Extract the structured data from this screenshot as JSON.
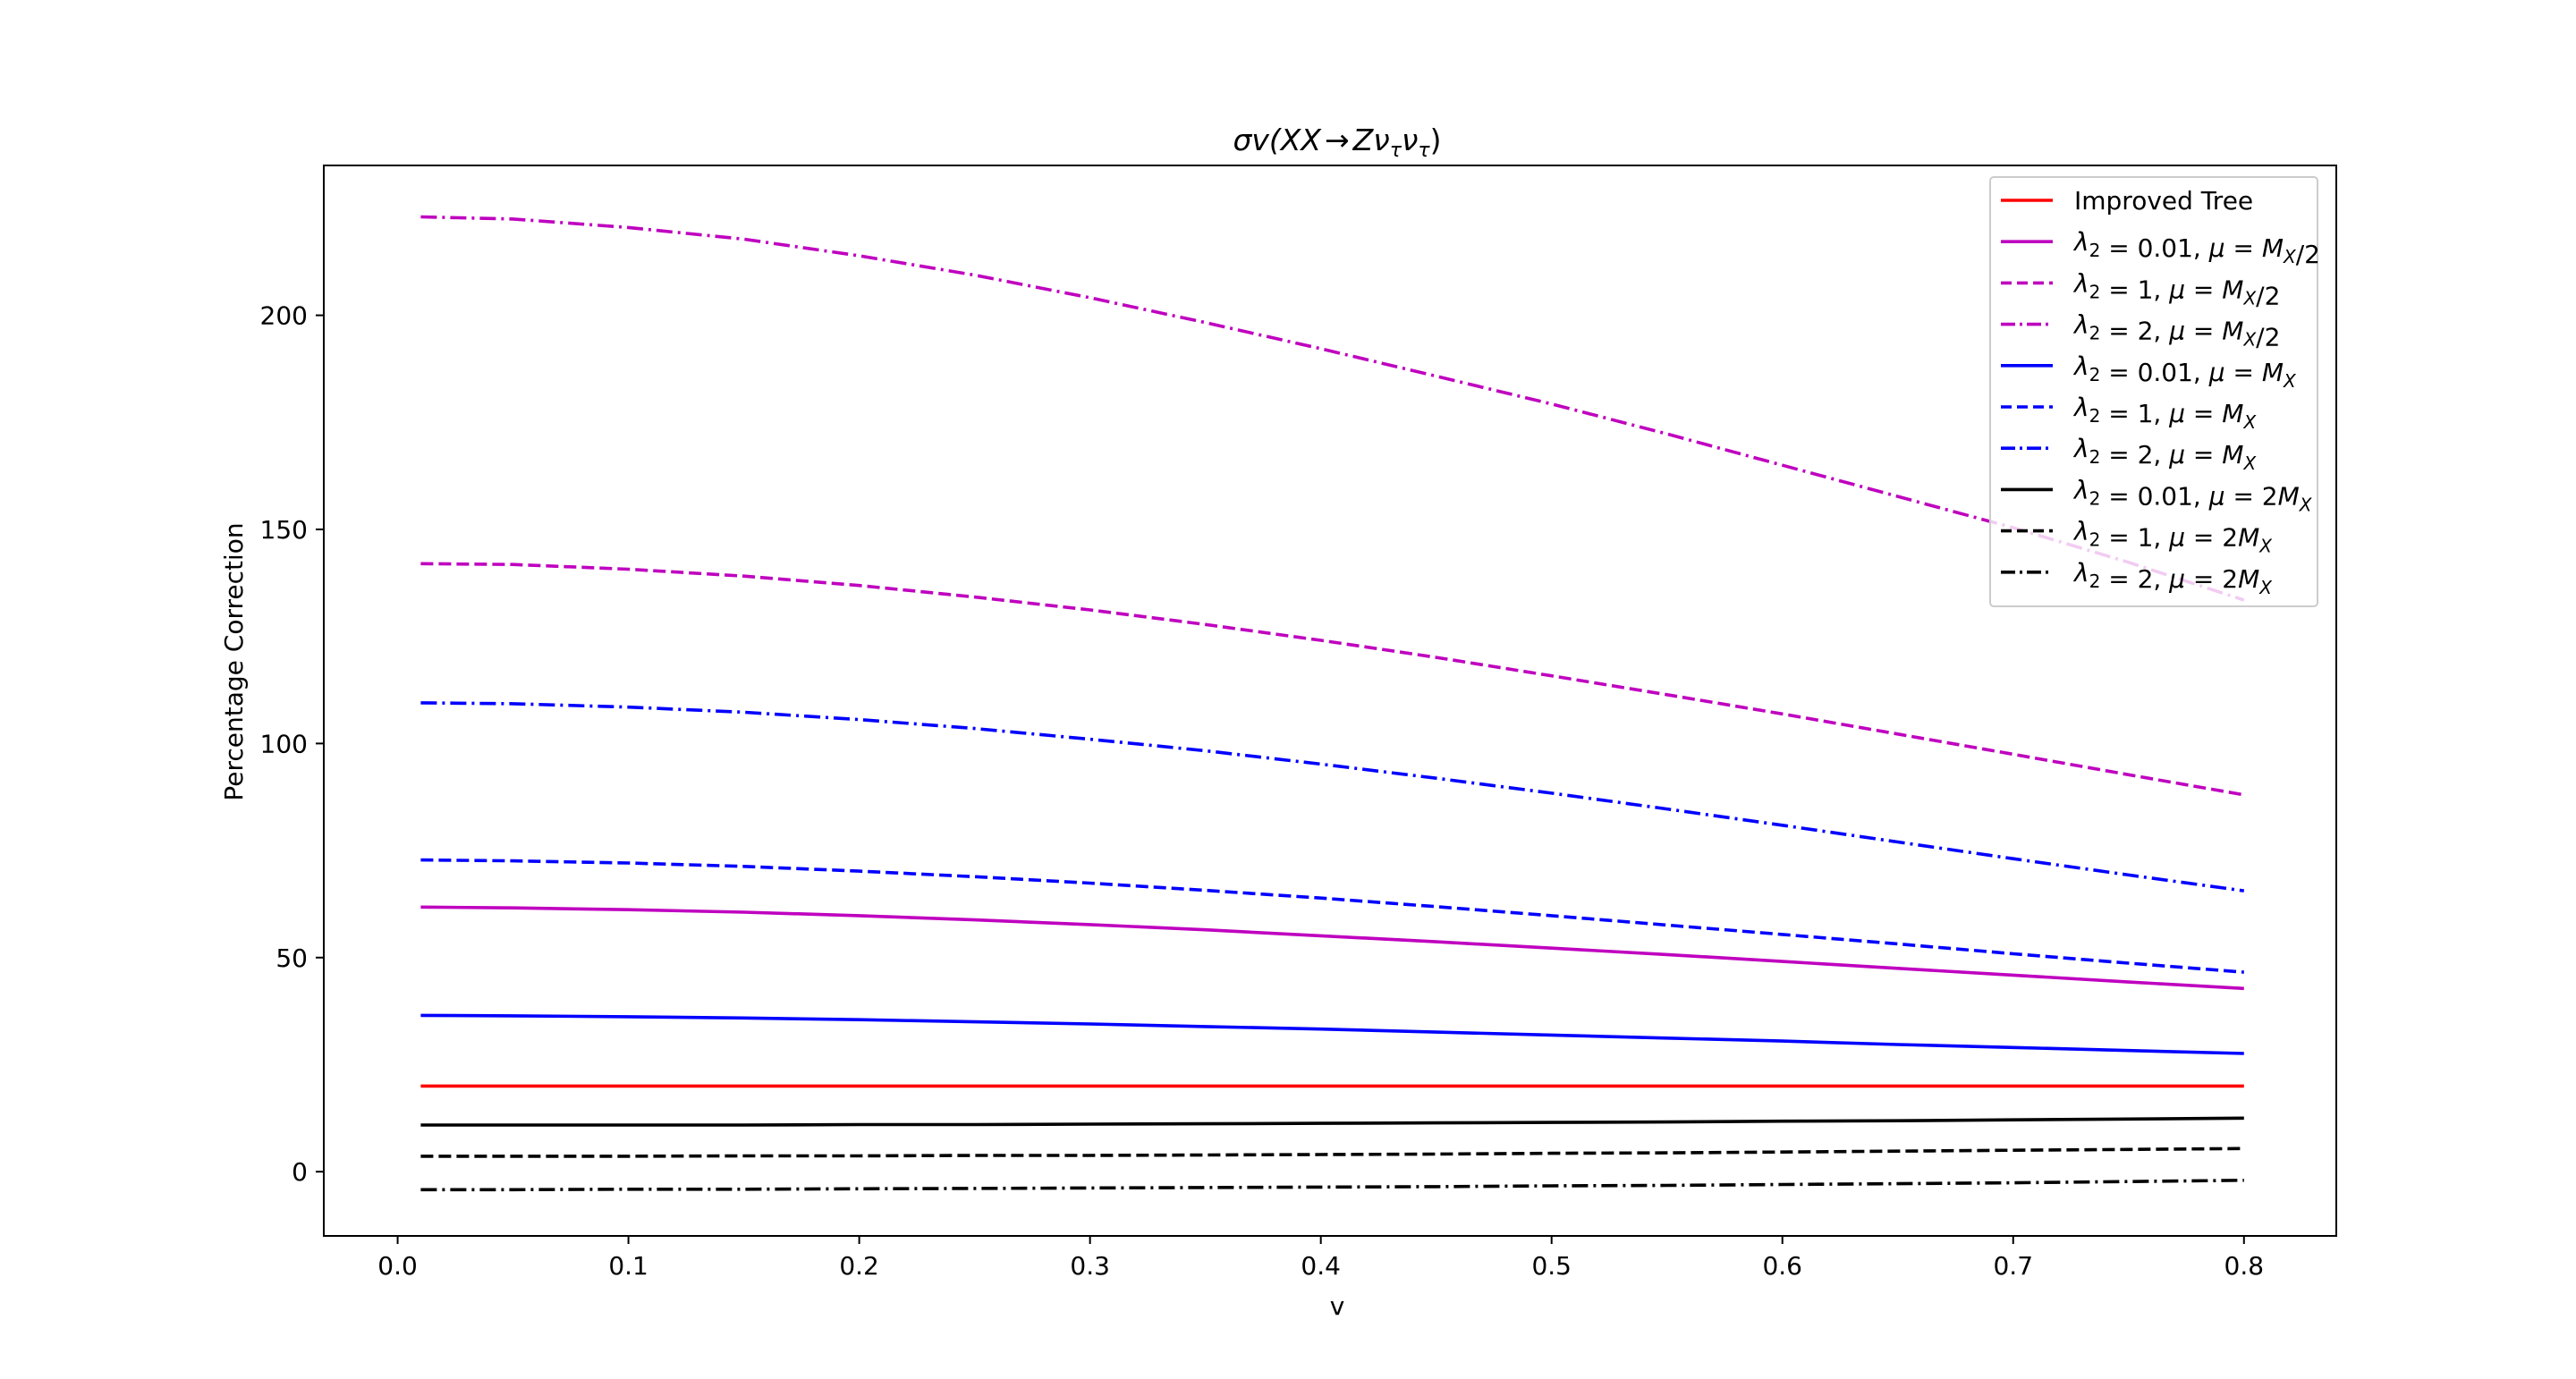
{
  "chart_data": {
    "type": "line",
    "title": "σv(XX → Zν_τν_τ)",
    "xlabel": "v",
    "ylabel": "Percentage Correction",
    "xlim": [
      -0.032,
      0.84
    ],
    "ylim": [
      -15,
      235
    ],
    "x_ticks": [
      0.0,
      0.1,
      0.2,
      0.3,
      0.4,
      0.5,
      0.6,
      0.7,
      0.8
    ],
    "x_tick_labels": [
      "0.0",
      "0.1",
      "0.2",
      "0.3",
      "0.4",
      "0.5",
      "0.6",
      "0.7",
      "0.8"
    ],
    "y_ticks": [
      0,
      50,
      100,
      150,
      200
    ],
    "y_tick_labels": [
      "0",
      "50",
      "100",
      "150",
      "200"
    ],
    "grid": false,
    "legend_position": "top-right",
    "x": [
      0.01,
      0.05,
      0.1,
      0.15,
      0.2,
      0.25,
      0.3,
      0.35,
      0.4,
      0.45,
      0.5,
      0.55,
      0.6,
      0.65,
      0.7,
      0.75,
      0.8
    ],
    "series": [
      {
        "name": "Improved Tree",
        "legend_parts": [
          {
            "t": "Improved Tree",
            "i": false
          }
        ],
        "color": "#ff0000",
        "style": "solid",
        "values": [
          20,
          20,
          20,
          20,
          20,
          20,
          20,
          20,
          20,
          20,
          20,
          20,
          20,
          20,
          20,
          20,
          20
        ]
      },
      {
        "name": "λ₂ = 0.01, μ = M_X/2",
        "legend_parts": [
          {
            "t": "λ",
            "i": true
          },
          {
            "t": "2",
            "s": "sub",
            "i": false
          },
          {
            "t": " = 0.01, ",
            "i": false
          },
          {
            "t": "μ",
            "i": true
          },
          {
            "t": " = ",
            "i": false
          },
          {
            "t": "M",
            "i": true
          },
          {
            "t": "X",
            "s": "sub",
            "i": true
          },
          {
            "t": "/2",
            "i": false
          }
        ],
        "color": "#bf00bf",
        "style": "solid",
        "values": [
          61.8,
          61.6,
          61.2,
          60.6,
          59.8,
          58.8,
          57.7,
          56.5,
          55.1,
          53.7,
          52.2,
          50.7,
          49.1,
          47.5,
          45.9,
          44.3,
          42.8
        ]
      },
      {
        "name": "λ₂ = 1, μ = M_X/2",
        "legend_parts": [
          {
            "t": "λ",
            "i": true
          },
          {
            "t": "2",
            "s": "sub",
            "i": false
          },
          {
            "t": " = 1, ",
            "i": false
          },
          {
            "t": "μ",
            "i": true
          },
          {
            "t": " = ",
            "i": false
          },
          {
            "t": "M",
            "i": true
          },
          {
            "t": "X",
            "s": "sub",
            "i": true
          },
          {
            "t": "/2",
            "i": false
          }
        ],
        "color": "#bf00bf",
        "style": "dashed",
        "values": [
          142,
          141.8,
          140.7,
          139.1,
          136.9,
          134.2,
          131.2,
          127.8,
          124.1,
          120.1,
          115.8,
          111.4,
          106.9,
          102.2,
          97.5,
          92.7,
          88
        ]
      },
      {
        "name": "λ₂ = 2, μ = M_X/2",
        "legend_parts": [
          {
            "t": "λ",
            "i": true
          },
          {
            "t": "2",
            "s": "sub",
            "i": false
          },
          {
            "t": " = 2, ",
            "i": false
          },
          {
            "t": "μ",
            "i": true
          },
          {
            "t": " = ",
            "i": false
          },
          {
            "t": "M",
            "i": true
          },
          {
            "t": "X",
            "s": "sub",
            "i": true
          },
          {
            "t": "/2",
            "i": false
          }
        ],
        "color": "#bf00bf",
        "style": "dashdot",
        "values": [
          223,
          222.5,
          220.5,
          217.8,
          213.9,
          209.4,
          204.1,
          198.3,
          192.2,
          185.8,
          179.3,
          172.3,
          165,
          157.7,
          150.4,
          142.3,
          133.5
        ]
      },
      {
        "name": "λ₂ = 0.01, μ = M_X",
        "legend_parts": [
          {
            "t": "λ",
            "i": true
          },
          {
            "t": "2",
            "s": "sub",
            "i": false
          },
          {
            "t": " = 0.01, ",
            "i": false
          },
          {
            "t": "μ",
            "i": true
          },
          {
            "t": " = ",
            "i": false
          },
          {
            "t": "M",
            "i": true
          },
          {
            "t": "X",
            "s": "sub",
            "i": true
          }
        ],
        "color": "#0000ff",
        "style": "solid",
        "values": [
          36.5,
          36.4,
          36.2,
          35.9,
          35.5,
          35,
          34.5,
          33.9,
          33.3,
          32.6,
          31.9,
          31.2,
          30.5,
          29.7,
          29,
          28.3,
          27.6
        ]
      },
      {
        "name": "λ₂ = 1, μ = M_X",
        "legend_parts": [
          {
            "t": "λ",
            "i": true
          },
          {
            "t": "2",
            "s": "sub",
            "i": false
          },
          {
            "t": " = 1, ",
            "i": false
          },
          {
            "t": "μ",
            "i": true
          },
          {
            "t": " = ",
            "i": false
          },
          {
            "t": "M",
            "i": true
          },
          {
            "t": "X",
            "s": "sub",
            "i": true
          }
        ],
        "color": "#0000ff",
        "style": "dashed",
        "values": [
          72.8,
          72.6,
          72.1,
          71.3,
          70.2,
          68.9,
          67.4,
          65.7,
          63.9,
          61.9,
          59.8,
          57.6,
          55.4,
          53.2,
          50.9,
          48.7,
          46.6
        ]
      },
      {
        "name": "λ₂ = 2, μ = M_X",
        "legend_parts": [
          {
            "t": "λ",
            "i": true
          },
          {
            "t": "2",
            "s": "sub",
            "i": false
          },
          {
            "t": " = 2, ",
            "i": false
          },
          {
            "t": "μ",
            "i": true
          },
          {
            "t": " = ",
            "i": false
          },
          {
            "t": "M",
            "i": true
          },
          {
            "t": "X",
            "s": "sub",
            "i": true
          }
        ],
        "color": "#0000ff",
        "style": "dashdot",
        "values": [
          109.5,
          109.3,
          108.5,
          107.3,
          105.6,
          103.5,
          101,
          98.3,
          95.2,
          91.9,
          88.4,
          84.7,
          80.9,
          77,
          73.1,
          69.3,
          65.6
        ]
      },
      {
        "name": "λ₂ = 0.01, μ = 2M_X",
        "legend_parts": [
          {
            "t": "λ",
            "i": true
          },
          {
            "t": "2",
            "s": "sub",
            "i": false
          },
          {
            "t": " = 0.01, ",
            "i": false
          },
          {
            "t": "μ",
            "i": true
          },
          {
            "t": " = 2",
            "i": false
          },
          {
            "t": "M",
            "i": true
          },
          {
            "t": "X",
            "s": "sub",
            "i": true
          }
        ],
        "color": "#000000",
        "style": "solid",
        "values": [
          10.9,
          10.9,
          10.9,
          10.9,
          11,
          11,
          11.1,
          11.2,
          11.3,
          11.4,
          11.5,
          11.6,
          11.8,
          11.9,
          12.1,
          12.3,
          12.5
        ]
      },
      {
        "name": "λ₂ = 1, μ = 2M_X",
        "legend_parts": [
          {
            "t": "λ",
            "i": true
          },
          {
            "t": "2",
            "s": "sub",
            "i": false
          },
          {
            "t": " = 1, ",
            "i": false
          },
          {
            "t": "μ",
            "i": true
          },
          {
            "t": " = 2",
            "i": false
          },
          {
            "t": "M",
            "i": true
          },
          {
            "t": "X",
            "s": "sub",
            "i": true
          }
        ],
        "color": "#000000",
        "style": "dashed",
        "values": [
          3.6,
          3.6,
          3.6,
          3.7,
          3.7,
          3.8,
          3.8,
          3.9,
          4,
          4.1,
          4.3,
          4.4,
          4.6,
          4.8,
          5,
          5.2,
          5.4
        ]
      },
      {
        "name": "λ₂ = 2, μ = 2M_X",
        "legend_parts": [
          {
            "t": "λ",
            "i": true
          },
          {
            "t": "2",
            "s": "sub",
            "i": false
          },
          {
            "t": " = 2, ",
            "i": false
          },
          {
            "t": "μ",
            "i": true
          },
          {
            "t": " = 2",
            "i": false
          },
          {
            "t": "M",
            "i": true
          },
          {
            "t": "X",
            "s": "sub",
            "i": true
          }
        ],
        "color": "#000000",
        "style": "dashdot",
        "values": [
          -4.2,
          -4.2,
          -4.1,
          -4.1,
          -4,
          -3.9,
          -3.8,
          -3.7,
          -3.6,
          -3.5,
          -3.3,
          -3.2,
          -3,
          -2.8,
          -2.6,
          -2.3,
          -2
        ]
      }
    ]
  }
}
